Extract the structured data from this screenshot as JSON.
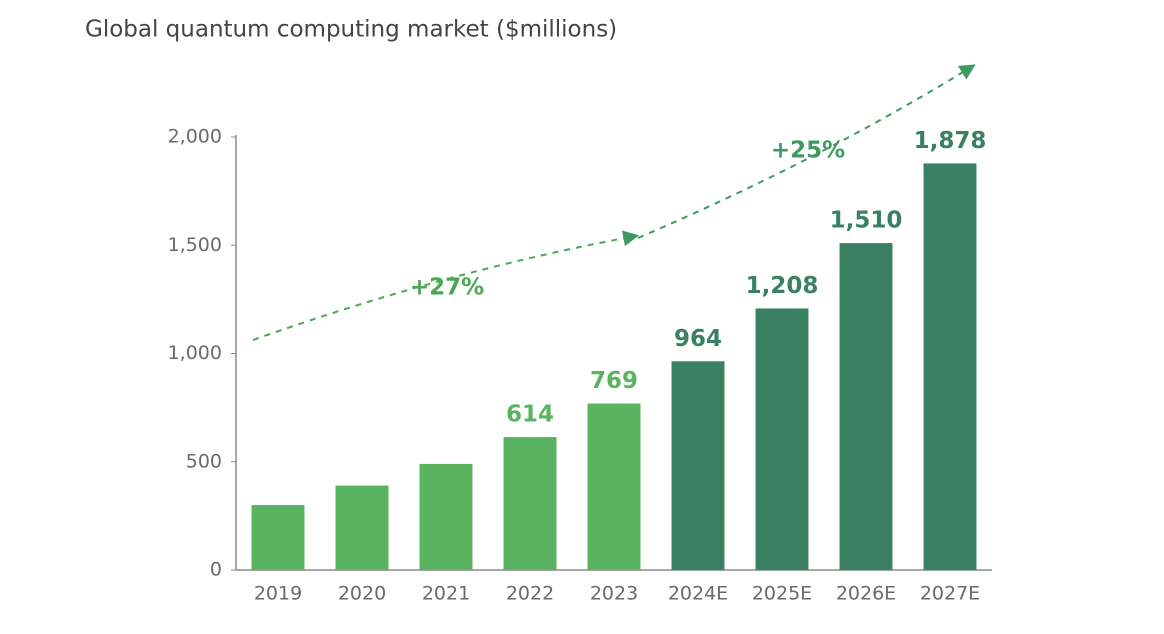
{
  "chart_data": {
    "type": "bar",
    "title": "Global quantum computing market ($millions)",
    "categories": [
      "2019",
      "2020",
      "2021",
      "2022",
      "2023",
      "2024E",
      "2025E",
      "2026E",
      "2027E"
    ],
    "values": [
      300,
      390,
      490,
      614,
      769,
      964,
      1208,
      1510,
      1878
    ],
    "value_labels": [
      null,
      null,
      null,
      "614",
      "769",
      "964",
      "1,208",
      "1,510",
      "1,878"
    ],
    "colors": [
      "#5ab45f",
      "#5ab45f",
      "#5ab45f",
      "#5ab45f",
      "#5ab45f",
      "#3a8163",
      "#3a8163",
      "#3a8163",
      "#3a8163"
    ],
    "ylim": [
      0,
      2000
    ],
    "yticks": [
      0,
      500,
      {
        "value": 1000,
        "label": "1,000"
      },
      {
        "value": 1500,
        "label": "1,500"
      },
      {
        "value": 2000,
        "label": "2,000"
      }
    ],
    "grid": false,
    "annotations": [
      {
        "text": "+27%",
        "color": "#4aa853"
      },
      {
        "text": "+25%",
        "color": "#3f9a62"
      }
    ]
  }
}
